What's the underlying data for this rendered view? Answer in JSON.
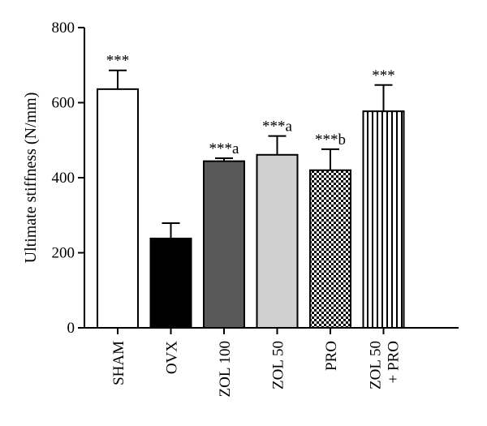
{
  "chart_data": {
    "type": "bar",
    "title": "",
    "xlabel": "",
    "ylabel": "Ultimate stiffness (N/mm)",
    "ylim": [
      0,
      800
    ],
    "yticks": [
      0,
      200,
      400,
      600,
      800
    ],
    "grid": false,
    "categories": [
      [
        "SHAM"
      ],
      [
        "OVX"
      ],
      [
        "ZOL 100"
      ],
      [
        "ZOL 50"
      ],
      [
        "PRO"
      ],
      [
        "ZOL 50",
        "+ PRO"
      ]
    ],
    "values": [
      636,
      238,
      444,
      461,
      420,
      577
    ],
    "errors": [
      50,
      41,
      8,
      50,
      56,
      70
    ],
    "annotations": [
      "***",
      "",
      "***a",
      "***a",
      "***b",
      "***"
    ],
    "fills": [
      "white",
      "black",
      "dark-gray",
      "light-gray",
      "checkerboard",
      "vertical-stripes"
    ],
    "colors": {
      "black": "#000000",
      "dark_gray": "#595959",
      "light_gray": "#d0d0d0",
      "white": "#ffffff"
    }
  }
}
